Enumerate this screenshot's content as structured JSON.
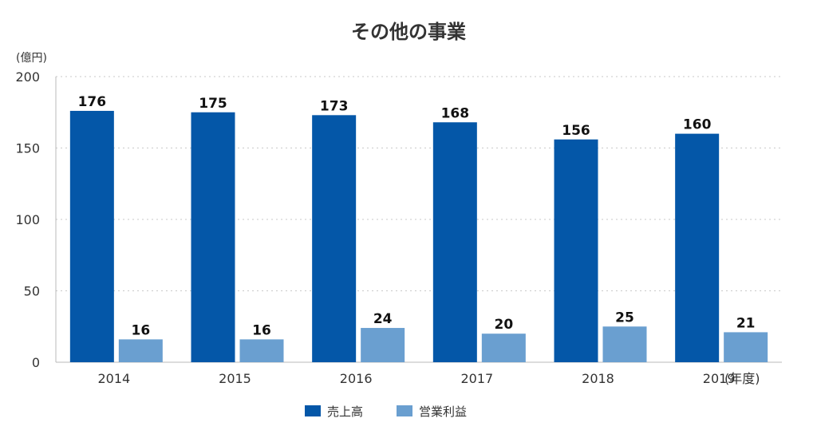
{
  "chart_data": {
    "type": "bar",
    "title": "その他の事業",
    "ylabel": "(億円)",
    "xlabel": "(年度)",
    "ylim": [
      0,
      200
    ],
    "yticks": [
      0,
      50,
      100,
      150,
      200
    ],
    "categories": [
      "2014",
      "2015",
      "2016",
      "2017",
      "2018",
      "2019"
    ],
    "series": [
      {
        "name": "売上高",
        "color": "#0457a8",
        "values": [
          176,
          175,
          173,
          168,
          156,
          160
        ]
      },
      {
        "name": "営業利益",
        "color": "#6a9fd0",
        "values": [
          16,
          16,
          24,
          20,
          25,
          21
        ]
      }
    ],
    "legend": "bottom",
    "grid": true
  }
}
